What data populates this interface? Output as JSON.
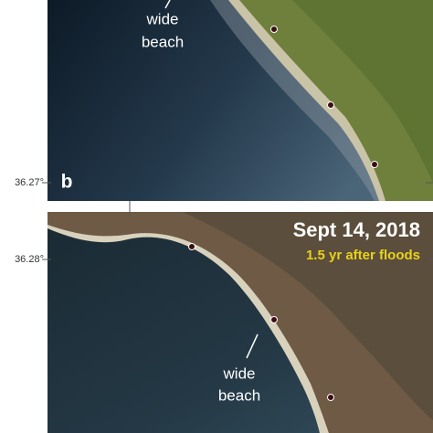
{
  "panels": [
    {
      "label": "b",
      "annotation": [
        "wide",
        "beach"
      ],
      "latitude_label": "36.27°"
    },
    {
      "title": "Sept 14, 2018",
      "subtitle": "1.5 yr after floods",
      "annotation": [
        "wide",
        "beach"
      ],
      "latitude_label": "36.28°"
    }
  ]
}
